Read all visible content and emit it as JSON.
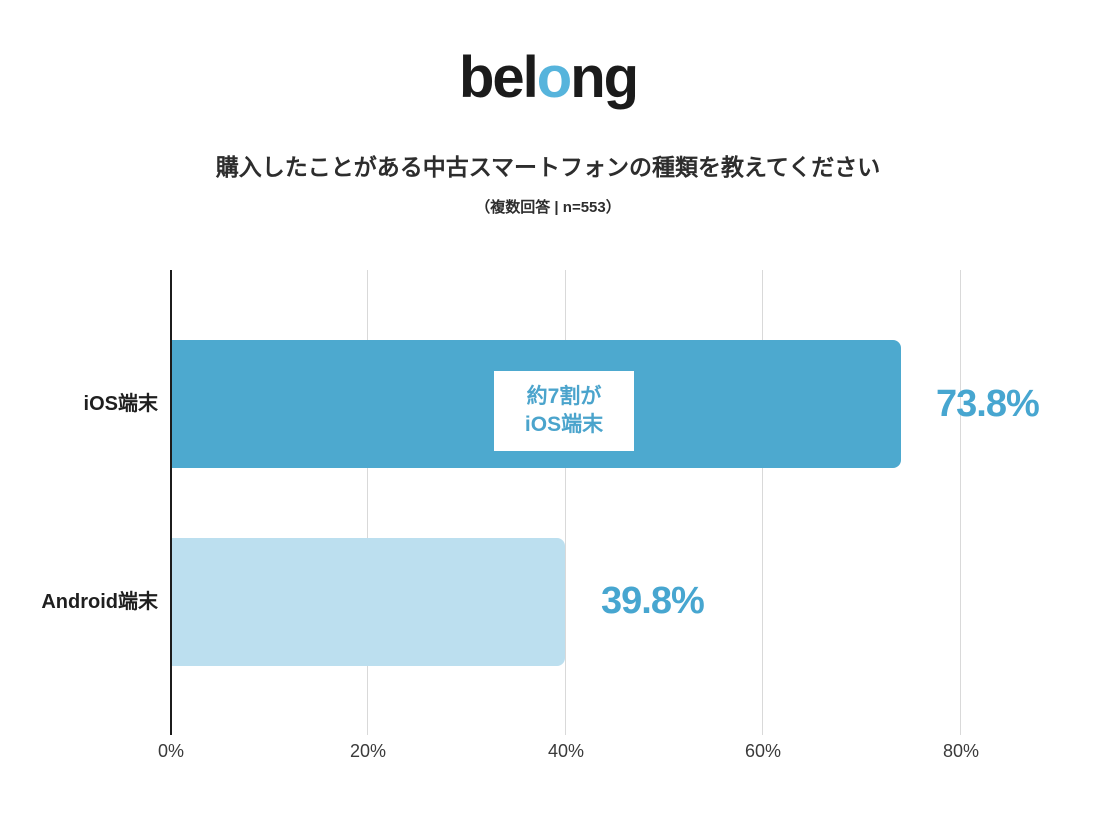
{
  "logo": {
    "prefix": "bel",
    "accent_letter": "o",
    "suffix": "ng",
    "accent_color": "#56b4dc",
    "text_color": "#1b1b1b"
  },
  "header": {
    "title": "購入したことがある中古スマートフォンの種類を教えてください",
    "subtitle": "（複数回答 | n=553）"
  },
  "chart_data": {
    "type": "bar",
    "orientation": "horizontal",
    "categories": [
      "iOS端末",
      "Android端末"
    ],
    "values": [
      73.8,
      39.8
    ],
    "value_labels": [
      "73.8%",
      "39.8%"
    ],
    "series_colors": [
      "#4da9cf",
      "#bcdfef"
    ],
    "value_label_color": "#47a6d0",
    "x_ticks": [
      "0%",
      "20%",
      "40%",
      "60%",
      "80%"
    ],
    "x_tick_values": [
      0,
      20,
      40,
      60,
      80
    ],
    "xlim": [
      0,
      90
    ],
    "grid": "vertical-gridlines-at-20pct-steps",
    "legend": "none",
    "title": "購入したことがある中古スマートフォンの種類を教えてください",
    "subtitle": "（複数回答 | n=553）",
    "annotation": {
      "line1": "約7割が",
      "line2": "iOS端末",
      "text_color": "#4ba4cc",
      "background": "#ffffff",
      "attached_to": "iOS端末"
    }
  }
}
